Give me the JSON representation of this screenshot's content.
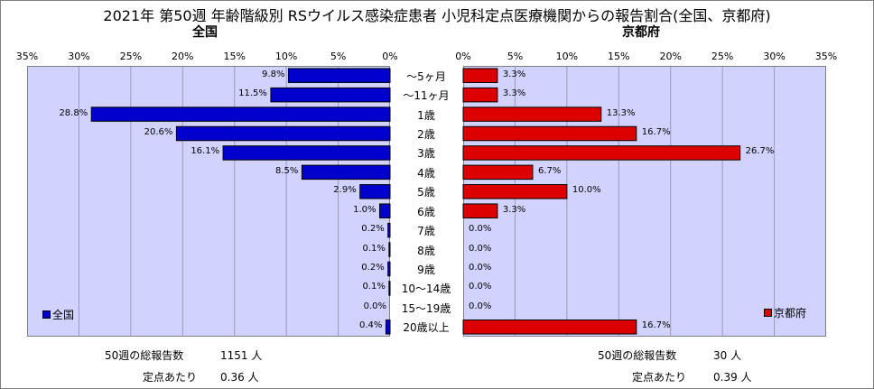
{
  "title": "2021年 第50週 年齢階級別 RSウイルス感染症患者 小児科定点医療機関からの報告割合(全国、京都府)",
  "chart_data": [
    {
      "type": "bar",
      "orientation": "horizontal-reversed",
      "title": "全国",
      "categories": [
        "～5ヶ月",
        "～11ヶ月",
        "1歳",
        "2歳",
        "3歳",
        "4歳",
        "5歳",
        "6歳",
        "7歳",
        "8歳",
        "9歳",
        "10～14歳",
        "15～19歳",
        "20歳以上"
      ],
      "series": [
        {
          "name": "全国",
          "values": [
            9.8,
            11.5,
            28.8,
            20.6,
            16.1,
            8.5,
            2.9,
            1.0,
            0.2,
            0.1,
            0.2,
            0.1,
            0.0,
            0.4
          ]
        }
      ],
      "value_labels": [
        "9.8%",
        "11.5%",
        "28.8%",
        "20.6%",
        "16.1%",
        "8.5%",
        "2.9%",
        "1.0%",
        "0.2%",
        "0.1%",
        "0.2%",
        "0.1%",
        "0.0%",
        "0.4%"
      ],
      "xlim": [
        0,
        35
      ],
      "ticks": [
        "35%",
        "30%",
        "25%",
        "20%",
        "15%",
        "10%",
        "5%",
        "0%"
      ],
      "color": "#0000cc",
      "legend_position": "bottom-left"
    },
    {
      "type": "bar",
      "orientation": "horizontal",
      "title": "京都府",
      "categories": [
        "～5ヶ月",
        "～11ヶ月",
        "1歳",
        "2歳",
        "3歳",
        "4歳",
        "5歳",
        "6歳",
        "7歳",
        "8歳",
        "9歳",
        "10～14歳",
        "15～19歳",
        "20歳以上"
      ],
      "series": [
        {
          "name": "京都府",
          "values": [
            3.3,
            3.3,
            13.3,
            16.7,
            26.7,
            6.7,
            10.0,
            3.3,
            0.0,
            0.0,
            0.0,
            0.0,
            0.0,
            16.7
          ]
        }
      ],
      "value_labels": [
        "3.3%",
        "3.3%",
        "13.3%",
        "16.7%",
        "26.7%",
        "6.7%",
        "10.0%",
        "3.3%",
        "0.0%",
        "0.0%",
        "0.0%",
        "0.0%",
        "0.0%",
        "16.7%"
      ],
      "xlim": [
        0,
        35
      ],
      "ticks": [
        "0%",
        "5%",
        "10%",
        "15%",
        "20%",
        "25%",
        "30%",
        "35%"
      ],
      "color": "#dd0000",
      "legend_position": "bottom-right"
    }
  ],
  "footer": {
    "left": {
      "total_label": "50週の総報告数",
      "total_value": "1151 人",
      "per_label": "定点あたり",
      "per_value": "0.36 人"
    },
    "right": {
      "total_label": "50週の総報告数",
      "total_value": "30 人",
      "per_label": "定点あたり",
      "per_value": "0.39 人"
    }
  }
}
